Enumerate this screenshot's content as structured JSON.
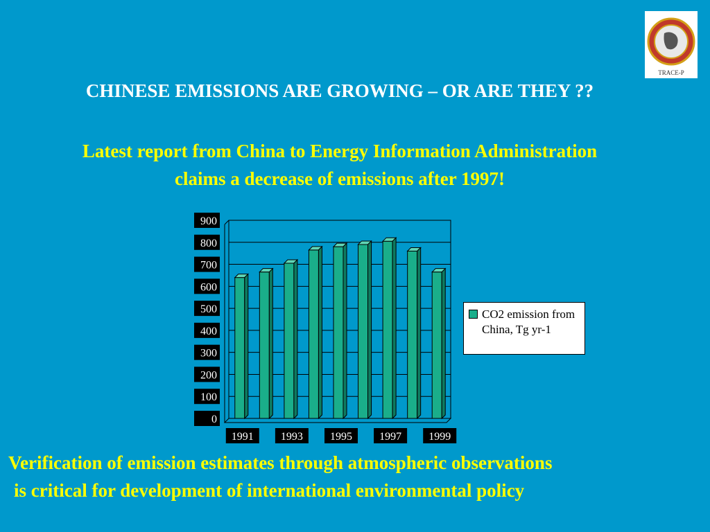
{
  "slide": {
    "heading": "CHINESE EMISSIONS ARE GROWING – OR ARE THEY ??",
    "subheading_line1": "Latest report from China to Energy Information Administration",
    "subheading_line2": "claims a decrease of emissions after 1997!",
    "footer_line1": "Verification of emission estimates through atmospheric observations",
    "footer_line2": " is critical for development of international environmental policy",
    "logo_text": "TRACE-P"
  },
  "colors": {
    "background": "#0099CC",
    "bar": "#1AAE8A",
    "heading": "#FFFFFF",
    "highlight": "#FFFF00"
  },
  "chart_data": {
    "type": "bar",
    "categories": [
      "1991",
      "1992",
      "1993",
      "1994",
      "1995",
      "1996",
      "1997",
      "1998",
      "1999"
    ],
    "x_tick_labels": [
      "1991",
      "1993",
      "1995",
      "1997",
      "1999"
    ],
    "series": [
      {
        "name": "CO2 emission from China, Tg yr-1",
        "values": [
          640,
          665,
          705,
          765,
          780,
          790,
          805,
          760,
          665
        ]
      }
    ],
    "y_ticks": [
      "0",
      "100",
      "200",
      "300",
      "400",
      "500",
      "600",
      "700",
      "800",
      "900"
    ],
    "ylim": [
      0,
      900
    ],
    "grid": true,
    "legend_position": "right"
  }
}
